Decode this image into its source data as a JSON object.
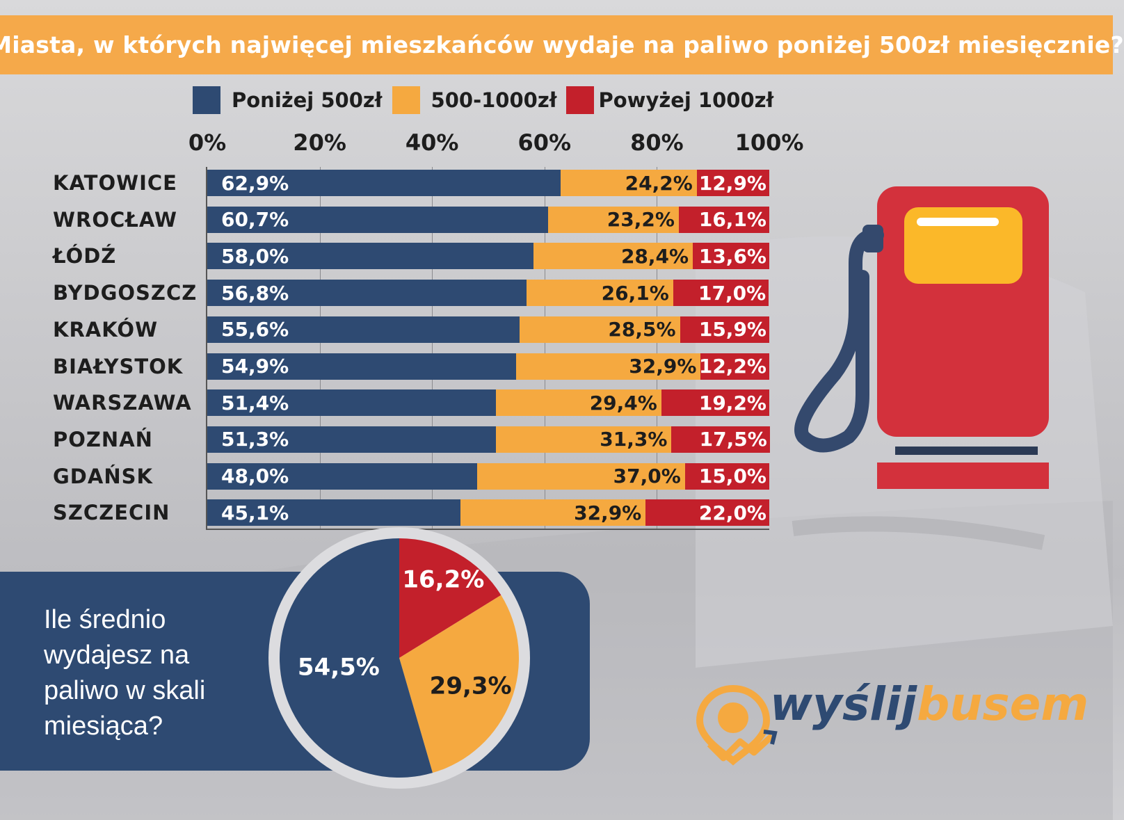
{
  "header": {
    "title": "Miasta, w których najwięcej mieszkańców wydaje na paliwo poniżej 500zł miesięcznie?"
  },
  "colors": {
    "navy": "#2e4a72",
    "orange": "#f5a940",
    "red": "#c3202b",
    "header_orange": "#f5a94a"
  },
  "legend": [
    {
      "label": "Poniżej 500zł",
      "color": "#2e4a72"
    },
    {
      "label": "500-1000zł",
      "color": "#f5a940"
    },
    {
      "label": "Powyżej 1000zł",
      "color": "#c3202b"
    }
  ],
  "chart_data": [
    {
      "type": "bar",
      "orientation": "horizontal",
      "stacked": true,
      "title": "Miasta, w których najwięcej mieszkańców wydaje na paliwo poniżej 500zł miesięcznie?",
      "xlim": [
        0,
        100
      ],
      "x_ticks": [
        "0%",
        "20%",
        "40%",
        "60%",
        "80%",
        "100%"
      ],
      "grid": true,
      "legend_position": "top",
      "categories": [
        "KATOWICE",
        "WROCŁAW",
        "ŁÓDŹ",
        "BYDGOSZCZ",
        "KRAKÓW",
        "BIAŁYSTOK",
        "WARSZAWA",
        "POZNAŃ",
        "GDAŃSK",
        "SZCZECIN"
      ],
      "series": [
        {
          "name": "Poniżej 500zł",
          "values": [
            62.9,
            60.7,
            58.0,
            56.8,
            55.6,
            54.9,
            51.4,
            51.3,
            48.0,
            45.1
          ],
          "labels": [
            "62,9%",
            "60,7%",
            "58,0%",
            "56,8%",
            "55,6%",
            "54,9%",
            "51,4%",
            "51,3%",
            "48,0%",
            "45,1%"
          ]
        },
        {
          "name": "500-1000zł",
          "values": [
            24.2,
            23.2,
            28.4,
            26.1,
            28.5,
            32.9,
            29.4,
            31.3,
            37.0,
            32.9
          ],
          "labels": [
            "24,2%",
            "23,2%",
            "28,4%",
            "26,1%",
            "28,5%",
            "32,9%",
            "29,4%",
            "31,3%",
            "37,0%",
            "32,9%"
          ]
        },
        {
          "name": "Powyżej 1000zł",
          "values": [
            12.9,
            16.1,
            13.6,
            17.0,
            15.9,
            12.2,
            19.2,
            17.5,
            15.0,
            22.0
          ],
          "labels": [
            "12,9%",
            "16,1%",
            "13,6%",
            "17,0%",
            "15,9%",
            "12,2%",
            "19,2%",
            "17,5%",
            "15,0%",
            "22,0%"
          ]
        }
      ]
    },
    {
      "type": "pie",
      "title": "Ile średnio wydajesz na paliwo w skali miesiąca?",
      "slices": [
        {
          "label": "16,2%",
          "value": 16.2,
          "color": "#c3202b"
        },
        {
          "label": "29,3%",
          "value": 29.3,
          "color": "#f5a940"
        },
        {
          "label": "54,5%",
          "value": 54.5,
          "color": "#2e4a72"
        }
      ]
    }
  ],
  "question": {
    "lines": [
      "Ile średnio",
      "wydajesz na",
      "paliwo w skali",
      "miesiąca?"
    ]
  },
  "logo": {
    "part1": "wyślij",
    "part2": "busem"
  }
}
